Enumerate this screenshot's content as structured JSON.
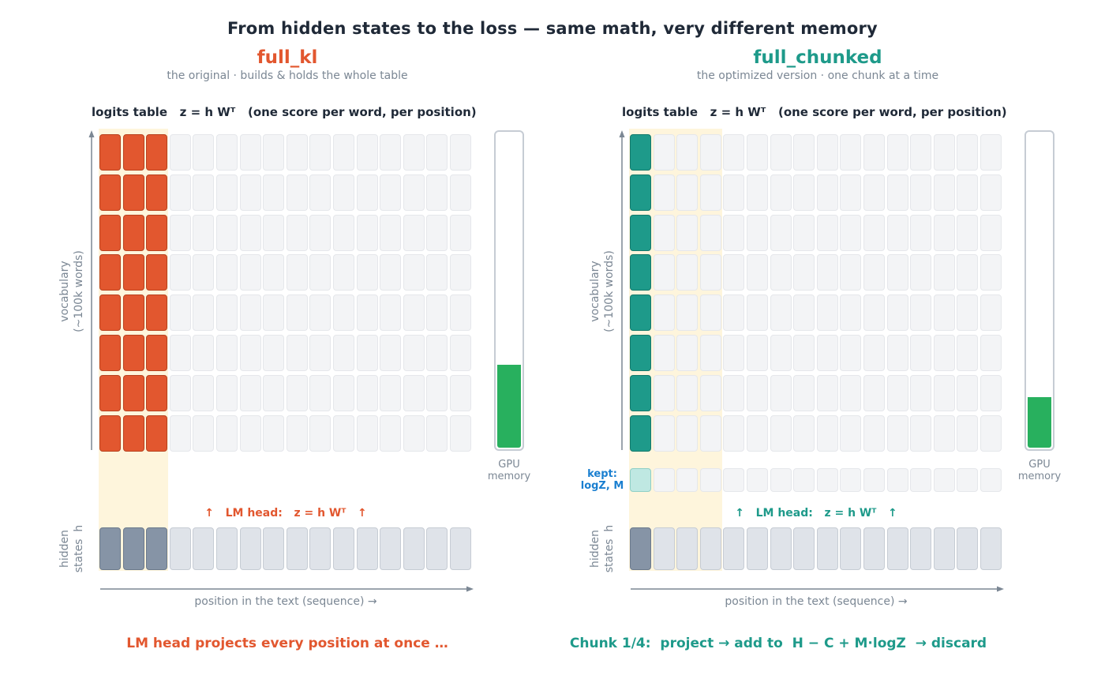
{
  "title": "From hidden states to the loss — same math, very different memory",
  "colors": {
    "full_kl": "#e2572f",
    "full_chunked": "#1e9a8a",
    "gpu_memory": "#28b05e",
    "kept_label": "#1a7fd0",
    "chunk_highlight": "#fef5dc"
  },
  "panels": [
    {
      "id": "full_kl",
      "name": "full_kl",
      "subtitle": "the original  ·  builds & holds the whole table",
      "table_title": "logits table   z = h Wᵀ   (one score per word, per position)",
      "y_axis_label": "vocabulary\n(~100k words)",
      "lm_head_label": "↑   LM head:   z = h Wᵀ   ↑",
      "hidden_label": "hidden\nstates  h",
      "x_axis_label": "position in the text  (sequence) →",
      "gpu_label": "GPU\nmemory",
      "gpu_memory_fraction": 0.26,
      "filled_columns": 3,
      "hidden_dark_columns": 3,
      "caption": "LM head projects every position at once …"
    },
    {
      "id": "full_chunked",
      "name": "full_chunked",
      "subtitle": "the optimized version  ·  one chunk at a time",
      "table_title": "logits table   z = h Wᵀ   (one score per word, per position)",
      "y_axis_label": "vocabulary\n(~100k words)",
      "lm_head_label": "↑   LM head:   z = h Wᵀ   ↑",
      "hidden_label": "hidden\nstates  h",
      "x_axis_label": "position in the text  (sequence) →",
      "gpu_label": "GPU\nmemory",
      "gpu_memory_fraction": 0.16,
      "filled_columns": 1,
      "hidden_dark_columns": 1,
      "kept_label": "kept:\nlogZ, M",
      "caption": "Chunk 1/4:  project → add to  H − C + M·logZ  → discard"
    }
  ]
}
